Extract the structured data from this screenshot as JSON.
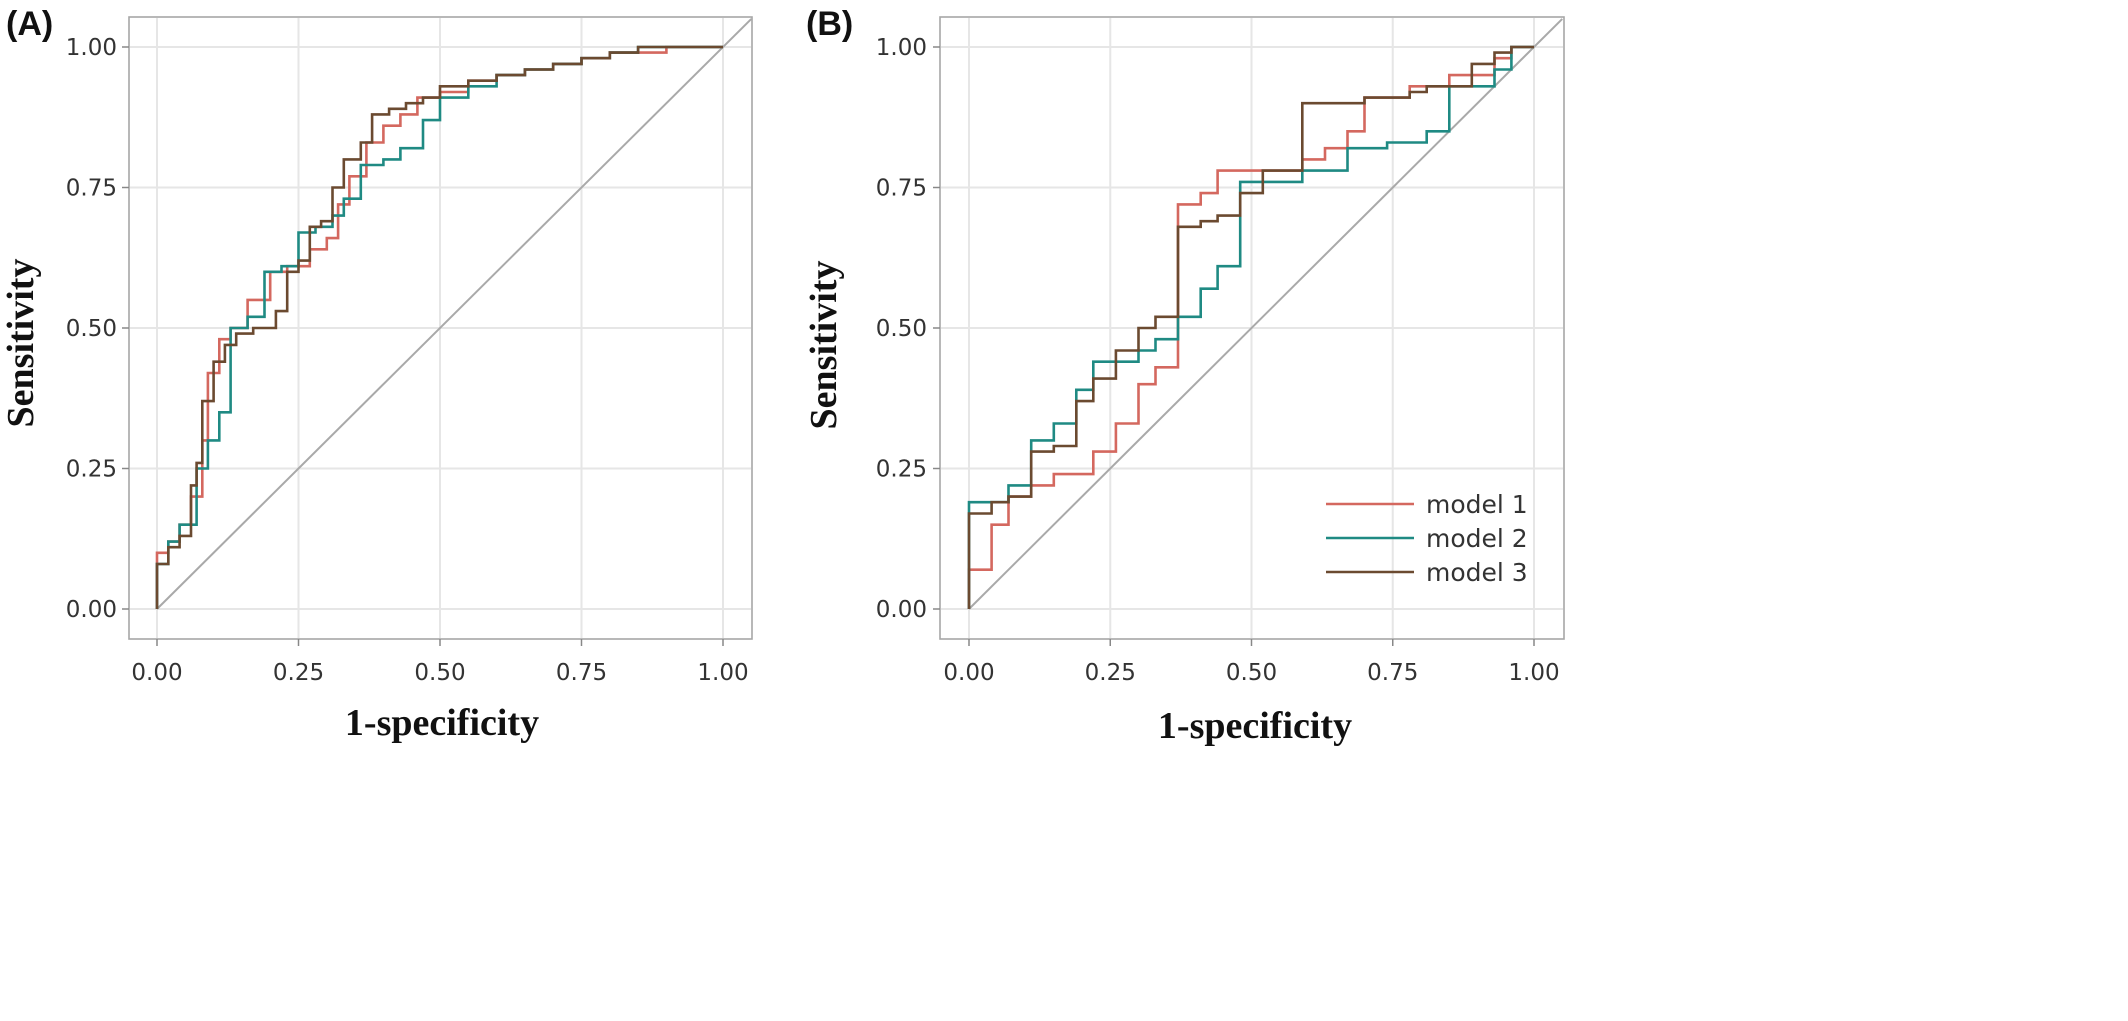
{
  "chart_data": [
    {
      "panel_label": "(A)",
      "type": "line",
      "xlabel": "1-specificity",
      "ylabel": "Sensitivity",
      "xlim": [
        0,
        1
      ],
      "ylim": [
        0,
        1
      ],
      "xticks": [
        "0.00",
        "0.25",
        "0.50",
        "0.75",
        "1.00"
      ],
      "yticks": [
        "0.00",
        "0.25",
        "0.50",
        "0.75",
        "1.00"
      ],
      "grid": true,
      "reference_line": "diagonal",
      "legend": null,
      "series": [
        {
          "color": "#d4685f",
          "x": [
            0,
            0,
            0.02,
            0.02,
            0.04,
            0.04,
            0.06,
            0.06,
            0.08,
            0.08,
            0.09,
            0.09,
            0.11,
            0.11,
            0.13,
            0.13,
            0.16,
            0.16,
            0.2,
            0.2,
            0.23,
            0.23,
            0.27,
            0.27,
            0.3,
            0.3,
            0.32,
            0.32,
            0.34,
            0.34,
            0.37,
            0.37,
            0.4,
            0.4,
            0.43,
            0.43,
            0.46,
            0.46,
            0.5,
            0.5,
            0.55,
            0.55,
            0.6,
            0.6,
            0.65,
            0.65,
            0.7,
            0.7,
            0.75,
            0.75,
            0.8,
            0.8,
            0.85,
            0.85,
            0.9,
            0.9,
            0.95,
            0.95,
            1
          ],
          "y": [
            0,
            0.1,
            0.1,
            0.12,
            0.12,
            0.15,
            0.15,
            0.2,
            0.2,
            0.3,
            0.3,
            0.42,
            0.42,
            0.48,
            0.48,
            0.5,
            0.5,
            0.55,
            0.55,
            0.6,
            0.6,
            0.61,
            0.61,
            0.64,
            0.64,
            0.66,
            0.66,
            0.72,
            0.72,
            0.77,
            0.77,
            0.83,
            0.83,
            0.86,
            0.86,
            0.88,
            0.88,
            0.91,
            0.91,
            0.92,
            0.92,
            0.94,
            0.94,
            0.95,
            0.95,
            0.96,
            0.96,
            0.97,
            0.97,
            0.98,
            0.98,
            0.99,
            0.99,
            0.99,
            0.99,
            1,
            1,
            1,
            1
          ]
        },
        {
          "color": "#1f8a83",
          "x": [
            0,
            0,
            0.02,
            0.02,
            0.04,
            0.04,
            0.07,
            0.07,
            0.09,
            0.09,
            0.11,
            0.11,
            0.13,
            0.13,
            0.16,
            0.16,
            0.19,
            0.19,
            0.22,
            0.22,
            0.25,
            0.25,
            0.28,
            0.28,
            0.31,
            0.31,
            0.33,
            0.33,
            0.36,
            0.36,
            0.4,
            0.4,
            0.43,
            0.43,
            0.47,
            0.47,
            0.5,
            0.5,
            0.55,
            0.55,
            0.6,
            0.6,
            0.65,
            0.65,
            0.7,
            0.7,
            0.75,
            0.75,
            0.8,
            0.8,
            0.85,
            0.85,
            0.9,
            0.9,
            1
          ],
          "y": [
            0,
            0.08,
            0.08,
            0.12,
            0.12,
            0.15,
            0.15,
            0.25,
            0.25,
            0.3,
            0.3,
            0.35,
            0.35,
            0.5,
            0.5,
            0.52,
            0.52,
            0.6,
            0.6,
            0.61,
            0.61,
            0.67,
            0.67,
            0.68,
            0.68,
            0.7,
            0.7,
            0.73,
            0.73,
            0.79,
            0.79,
            0.8,
            0.8,
            0.82,
            0.82,
            0.87,
            0.87,
            0.91,
            0.91,
            0.93,
            0.93,
            0.95,
            0.95,
            0.96,
            0.96,
            0.97,
            0.97,
            0.98,
            0.98,
            0.99,
            0.99,
            1,
            1,
            1,
            1
          ]
        },
        {
          "color": "#6b4a30",
          "x": [
            0,
            0,
            0.02,
            0.02,
            0.04,
            0.04,
            0.06,
            0.06,
            0.07,
            0.07,
            0.08,
            0.08,
            0.1,
            0.1,
            0.12,
            0.12,
            0.14,
            0.14,
            0.17,
            0.17,
            0.21,
            0.21,
            0.23,
            0.23,
            0.25,
            0.25,
            0.27,
            0.27,
            0.29,
            0.29,
            0.31,
            0.31,
            0.33,
            0.33,
            0.36,
            0.36,
            0.38,
            0.38,
            0.41,
            0.41,
            0.44,
            0.44,
            0.47,
            0.47,
            0.5,
            0.5,
            0.55,
            0.55,
            0.6,
            0.6,
            0.65,
            0.65,
            0.7,
            0.7,
            0.75,
            0.75,
            0.8,
            0.8,
            0.85,
            0.85,
            1
          ],
          "y": [
            0,
            0.08,
            0.08,
            0.11,
            0.11,
            0.13,
            0.13,
            0.22,
            0.22,
            0.26,
            0.26,
            0.37,
            0.37,
            0.44,
            0.44,
            0.47,
            0.47,
            0.49,
            0.49,
            0.5,
            0.5,
            0.53,
            0.53,
            0.6,
            0.6,
            0.62,
            0.62,
            0.68,
            0.68,
            0.69,
            0.69,
            0.75,
            0.75,
            0.8,
            0.8,
            0.83,
            0.83,
            0.88,
            0.88,
            0.89,
            0.89,
            0.9,
            0.9,
            0.91,
            0.91,
            0.93,
            0.93,
            0.94,
            0.94,
            0.95,
            0.95,
            0.96,
            0.96,
            0.97,
            0.97,
            0.98,
            0.98,
            0.99,
            0.99,
            1,
            1
          ]
        }
      ]
    },
    {
      "panel_label": "(B)",
      "type": "line",
      "xlabel": "1-specificity",
      "ylabel": "Sensitivity",
      "xlim": [
        0,
        1
      ],
      "ylim": [
        0,
        1
      ],
      "xticks": [
        "0.00",
        "0.25",
        "0.50",
        "0.75",
        "1.00"
      ],
      "yticks": [
        "0.00",
        "0.25",
        "0.50",
        "0.75",
        "1.00"
      ],
      "grid": true,
      "reference_line": "diagonal",
      "legend": {
        "position": "bottom-right",
        "entries": [
          "model 1",
          "model 2",
          "model 3"
        ]
      },
      "series": [
        {
          "name": "model 1",
          "color": "#d4685f",
          "x": [
            0,
            0,
            0.04,
            0.04,
            0.07,
            0.07,
            0.11,
            0.11,
            0.15,
            0.15,
            0.22,
            0.22,
            0.26,
            0.26,
            0.3,
            0.3,
            0.33,
            0.33,
            0.37,
            0.37,
            0.41,
            0.41,
            0.44,
            0.44,
            0.52,
            0.52,
            0.59,
            0.59,
            0.63,
            0.63,
            0.67,
            0.67,
            0.7,
            0.7,
            0.78,
            0.78,
            0.85,
            0.85,
            0.93,
            0.93,
            0.96,
            0.96,
            1
          ],
          "y": [
            0,
            0.07,
            0.07,
            0.15,
            0.15,
            0.2,
            0.2,
            0.22,
            0.22,
            0.24,
            0.24,
            0.28,
            0.28,
            0.33,
            0.33,
            0.4,
            0.4,
            0.43,
            0.43,
            0.72,
            0.72,
            0.74,
            0.74,
            0.78,
            0.78,
            0.78,
            0.78,
            0.8,
            0.8,
            0.82,
            0.82,
            0.85,
            0.85,
            0.91,
            0.91,
            0.93,
            0.93,
            0.95,
            0.95,
            0.98,
            0.98,
            1,
            1
          ]
        },
        {
          "name": "model 2",
          "color": "#1f8a83",
          "x": [
            0,
            0,
            0.07,
            0.07,
            0.11,
            0.11,
            0.15,
            0.15,
            0.19,
            0.19,
            0.22,
            0.22,
            0.3,
            0.3,
            0.33,
            0.33,
            0.37,
            0.37,
            0.41,
            0.41,
            0.44,
            0.44,
            0.48,
            0.48,
            0.59,
            0.59,
            0.67,
            0.67,
            0.74,
            0.74,
            0.81,
            0.81,
            0.85,
            0.85,
            0.93,
            0.93,
            0.96,
            0.96,
            1
          ],
          "y": [
            0,
            0.19,
            0.19,
            0.22,
            0.22,
            0.3,
            0.3,
            0.33,
            0.33,
            0.39,
            0.39,
            0.44,
            0.44,
            0.46,
            0.46,
            0.48,
            0.48,
            0.52,
            0.52,
            0.57,
            0.57,
            0.61,
            0.61,
            0.76,
            0.76,
            0.78,
            0.78,
            0.82,
            0.82,
            0.83,
            0.83,
            0.85,
            0.85,
            0.93,
            0.93,
            0.96,
            0.96,
            1,
            1
          ]
        },
        {
          "name": "model 3",
          "color": "#6b4a30",
          "x": [
            0,
            0,
            0.04,
            0.04,
            0.07,
            0.07,
            0.11,
            0.11,
            0.15,
            0.15,
            0.19,
            0.19,
            0.22,
            0.22,
            0.26,
            0.26,
            0.3,
            0.3,
            0.33,
            0.33,
            0.37,
            0.37,
            0.41,
            0.41,
            0.44,
            0.44,
            0.48,
            0.48,
            0.52,
            0.52,
            0.59,
            0.59,
            0.7,
            0.7,
            0.78,
            0.78,
            0.81,
            0.81,
            0.89,
            0.89,
            0.93,
            0.93,
            0.96,
            0.96,
            1
          ],
          "y": [
            0,
            0.17,
            0.17,
            0.19,
            0.19,
            0.2,
            0.2,
            0.28,
            0.28,
            0.29,
            0.29,
            0.37,
            0.37,
            0.41,
            0.41,
            0.46,
            0.46,
            0.5,
            0.5,
            0.52,
            0.52,
            0.68,
            0.68,
            0.69,
            0.69,
            0.7,
            0.7,
            0.74,
            0.74,
            0.78,
            0.78,
            0.9,
            0.9,
            0.91,
            0.91,
            0.92,
            0.92,
            0.93,
            0.93,
            0.97,
            0.97,
            0.99,
            0.99,
            1,
            1
          ]
        }
      ]
    }
  ]
}
